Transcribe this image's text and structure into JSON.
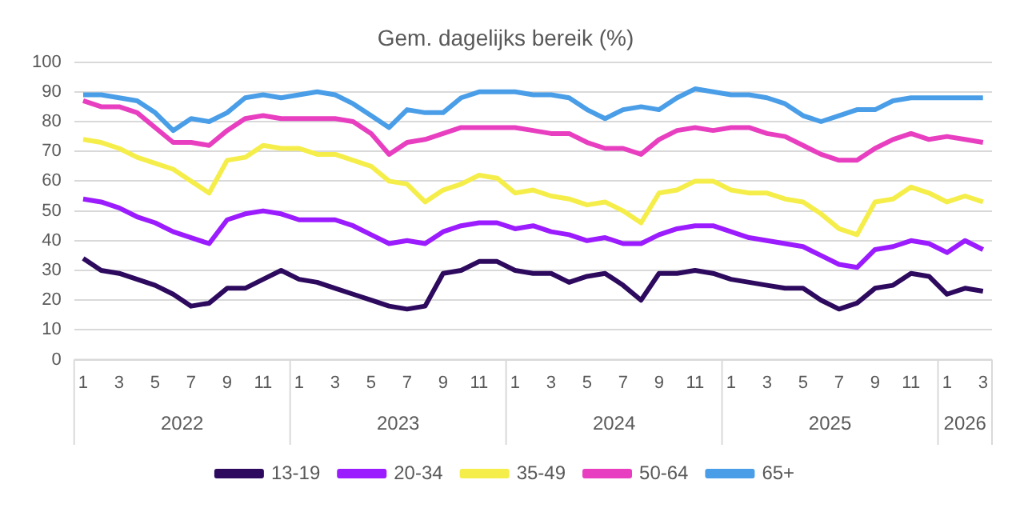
{
  "chart_data": {
    "type": "line",
    "title": "Gem. dagelijks bereik (%)",
    "categories": [
      "1",
      null,
      "3",
      null,
      "5",
      null,
      "7",
      null,
      "9",
      null,
      "11",
      null,
      "1",
      null,
      "3",
      null,
      "5",
      null,
      "7",
      null,
      "9",
      null,
      "11",
      null,
      "1",
      null,
      "3",
      null,
      "5",
      null,
      "7",
      null,
      "9",
      null,
      "11",
      null,
      "1",
      null,
      "3",
      null,
      "5",
      null,
      "7",
      null,
      "9",
      null,
      "11",
      null,
      "1",
      null,
      "3"
    ],
    "annotations": [
      "2022",
      "2023",
      "2024",
      "2025",
      "2026"
    ],
    "ylim": [
      0,
      100
    ],
    "yticks": [
      0,
      10,
      20,
      30,
      40,
      50,
      60,
      70,
      80,
      90,
      100
    ],
    "grid": "y",
    "legend": "bottom",
    "marker": "none",
    "line_style": "solid",
    "series": [
      {
        "name": "13-19",
        "color": "#2d0a5e",
        "values": [
          34,
          30,
          29,
          27,
          25,
          22,
          18,
          19,
          24,
          24,
          27,
          30,
          27,
          26,
          24,
          22,
          20,
          18,
          17,
          18,
          29,
          30,
          33,
          33,
          30,
          29,
          29,
          26,
          28,
          29,
          25,
          20,
          29,
          29,
          30,
          29,
          27,
          26,
          25,
          24,
          24,
          20,
          17,
          19,
          24,
          25,
          29,
          28,
          22,
          24,
          23
        ]
      },
      {
        "name": "20-34",
        "color": "#9b1cff",
        "values": [
          54,
          53,
          51,
          48,
          46,
          43,
          41,
          39,
          47,
          49,
          50,
          49,
          47,
          47,
          47,
          45,
          42,
          39,
          40,
          39,
          43,
          45,
          46,
          46,
          44,
          45,
          43,
          42,
          40,
          41,
          39,
          39,
          42,
          44,
          45,
          45,
          43,
          41,
          40,
          39,
          38,
          35,
          32,
          31,
          37,
          38,
          40,
          39,
          36,
          40,
          37
        ]
      },
      {
        "name": "35-49",
        "color": "#f5ee4a",
        "values": [
          74,
          73,
          71,
          68,
          66,
          64,
          60,
          56,
          67,
          68,
          72,
          71,
          71,
          69,
          69,
          67,
          65,
          60,
          59,
          53,
          57,
          59,
          62,
          61,
          56,
          57,
          55,
          54,
          52,
          53,
          50,
          46,
          56,
          57,
          60,
          60,
          57,
          56,
          56,
          54,
          53,
          49,
          44,
          42,
          53,
          54,
          58,
          56,
          53,
          55,
          53
        ]
      },
      {
        "name": "50-64",
        "color": "#e83fc0",
        "values": [
          87,
          85,
          85,
          83,
          78,
          73,
          73,
          72,
          77,
          81,
          82,
          81,
          81,
          81,
          81,
          80,
          76,
          69,
          73,
          74,
          76,
          78,
          78,
          78,
          78,
          77,
          76,
          76,
          73,
          71,
          71,
          69,
          74,
          77,
          78,
          77,
          78,
          78,
          76,
          75,
          72,
          69,
          67,
          67,
          71,
          74,
          76,
          74,
          75,
          74,
          73
        ]
      },
      {
        "name": "65+",
        "color": "#4a9ee8",
        "values": [
          89,
          89,
          88,
          87,
          83,
          77,
          81,
          80,
          83,
          88,
          89,
          88,
          89,
          90,
          89,
          86,
          82,
          78,
          84,
          83,
          83,
          88,
          90,
          90,
          90,
          89,
          89,
          88,
          84,
          81,
          84,
          85,
          84,
          88,
          91,
          90,
          89,
          89,
          88,
          86,
          82,
          80,
          82,
          84,
          84,
          87,
          88,
          88,
          88,
          88,
          88
        ]
      }
    ]
  }
}
